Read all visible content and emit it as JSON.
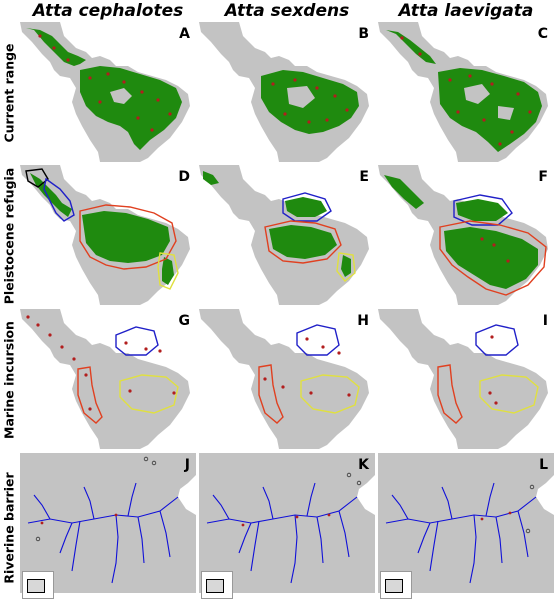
{
  "columns": [
    "Atta cephalotes",
    "Atta sexdens",
    "Atta laevigata"
  ],
  "rows": [
    "Current range",
    "Pleistocene refugia",
    "Marine incursion",
    "Riverine barrier"
  ],
  "panels": [
    {
      "letter": "A"
    },
    {
      "letter": "B"
    },
    {
      "letter": "C"
    },
    {
      "letter": "D"
    },
    {
      "letter": "E"
    },
    {
      "letter": "F"
    },
    {
      "letter": "G"
    },
    {
      "letter": "H"
    },
    {
      "letter": "I"
    },
    {
      "letter": "J"
    },
    {
      "letter": "K"
    },
    {
      "letter": "L"
    }
  ],
  "colors": {
    "land": "#c3c3c3",
    "sea": "#ffffff",
    "range": "#1f8a0f",
    "records": "#b21e1e",
    "rivers": "#1010d8",
    "refugia_red": "#e04020",
    "refugia_blue": "#2020c8",
    "refugia_yellow": "#e0e040",
    "refugia_black": "#000000"
  }
}
